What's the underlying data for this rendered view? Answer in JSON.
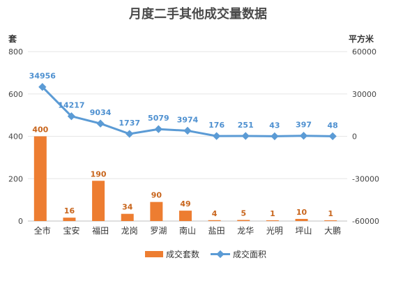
{
  "chart_data": {
    "type": "bar",
    "title": "月度二手其他成交量数据",
    "y_left_label": "套",
    "y_right_label": "平方米",
    "categories": [
      "全市",
      "宝安",
      "福田",
      "龙岗",
      "罗湖",
      "南山",
      "盐田",
      "龙华",
      "光明",
      "坪山",
      "大鹏"
    ],
    "series": [
      {
        "name": "成交套数",
        "type": "bar",
        "axis": "left",
        "color": "#ed7d31",
        "values": [
          400,
          16,
          190,
          34,
          90,
          49,
          4,
          5,
          1,
          10,
          1
        ]
      },
      {
        "name": "成交面积",
        "type": "line",
        "axis": "right",
        "color": "#5b9bd5",
        "values": [
          34956,
          14217,
          9034,
          1737,
          5079,
          3974,
          176,
          251,
          43,
          397,
          48
        ]
      }
    ],
    "y_left_lim": [
      0,
      800
    ],
    "y_left_ticks": [
      0,
      200,
      400,
      600,
      800
    ],
    "y_right_lim": [
      -60000,
      60000
    ],
    "y_right_ticks": [
      -60000,
      -30000,
      0,
      30000,
      60000
    ],
    "grid": true,
    "legend_position": "bottom"
  }
}
